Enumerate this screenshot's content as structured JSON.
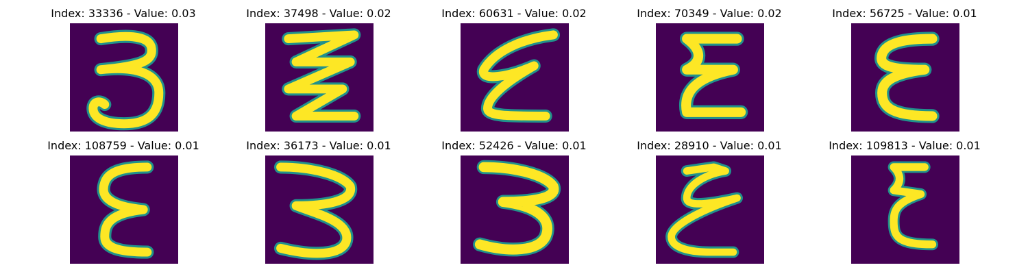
{
  "panels": [
    {
      "title": "Index: 33336 - Value: 0.03",
      "glyph": "three-glyph"
    },
    {
      "title": "Index: 37498 - Value: 0.02",
      "glyph": "zigzag-three-glyph"
    },
    {
      "title": "Index: 60631 - Value: 0.02",
      "glyph": "slanted-epsilon-glyph"
    },
    {
      "title": "Index: 70349 - Value: 0.02",
      "glyph": "epsilon-glyph"
    },
    {
      "title": "Index: 56725 - Value: 0.01",
      "glyph": "epsilon-glyph"
    },
    {
      "title": "Index: 108759 - Value: 0.01",
      "glyph": "epsilon-glyph"
    },
    {
      "title": "Index: 36173 - Value: 0.01",
      "glyph": "three-glyph"
    },
    {
      "title": "Index: 52426 - Value: 0.01",
      "glyph": "three-glyph"
    },
    {
      "title": "Index: 28910 - Value: 0.01",
      "glyph": "epsilon-glyph"
    },
    {
      "title": "Index: 109813 - Value: 0.01",
      "glyph": "epsilon-glyph"
    }
  ],
  "colors": {
    "background": "#440154",
    "stroke_edge": "#21918c",
    "stroke_core": "#fde725"
  }
}
